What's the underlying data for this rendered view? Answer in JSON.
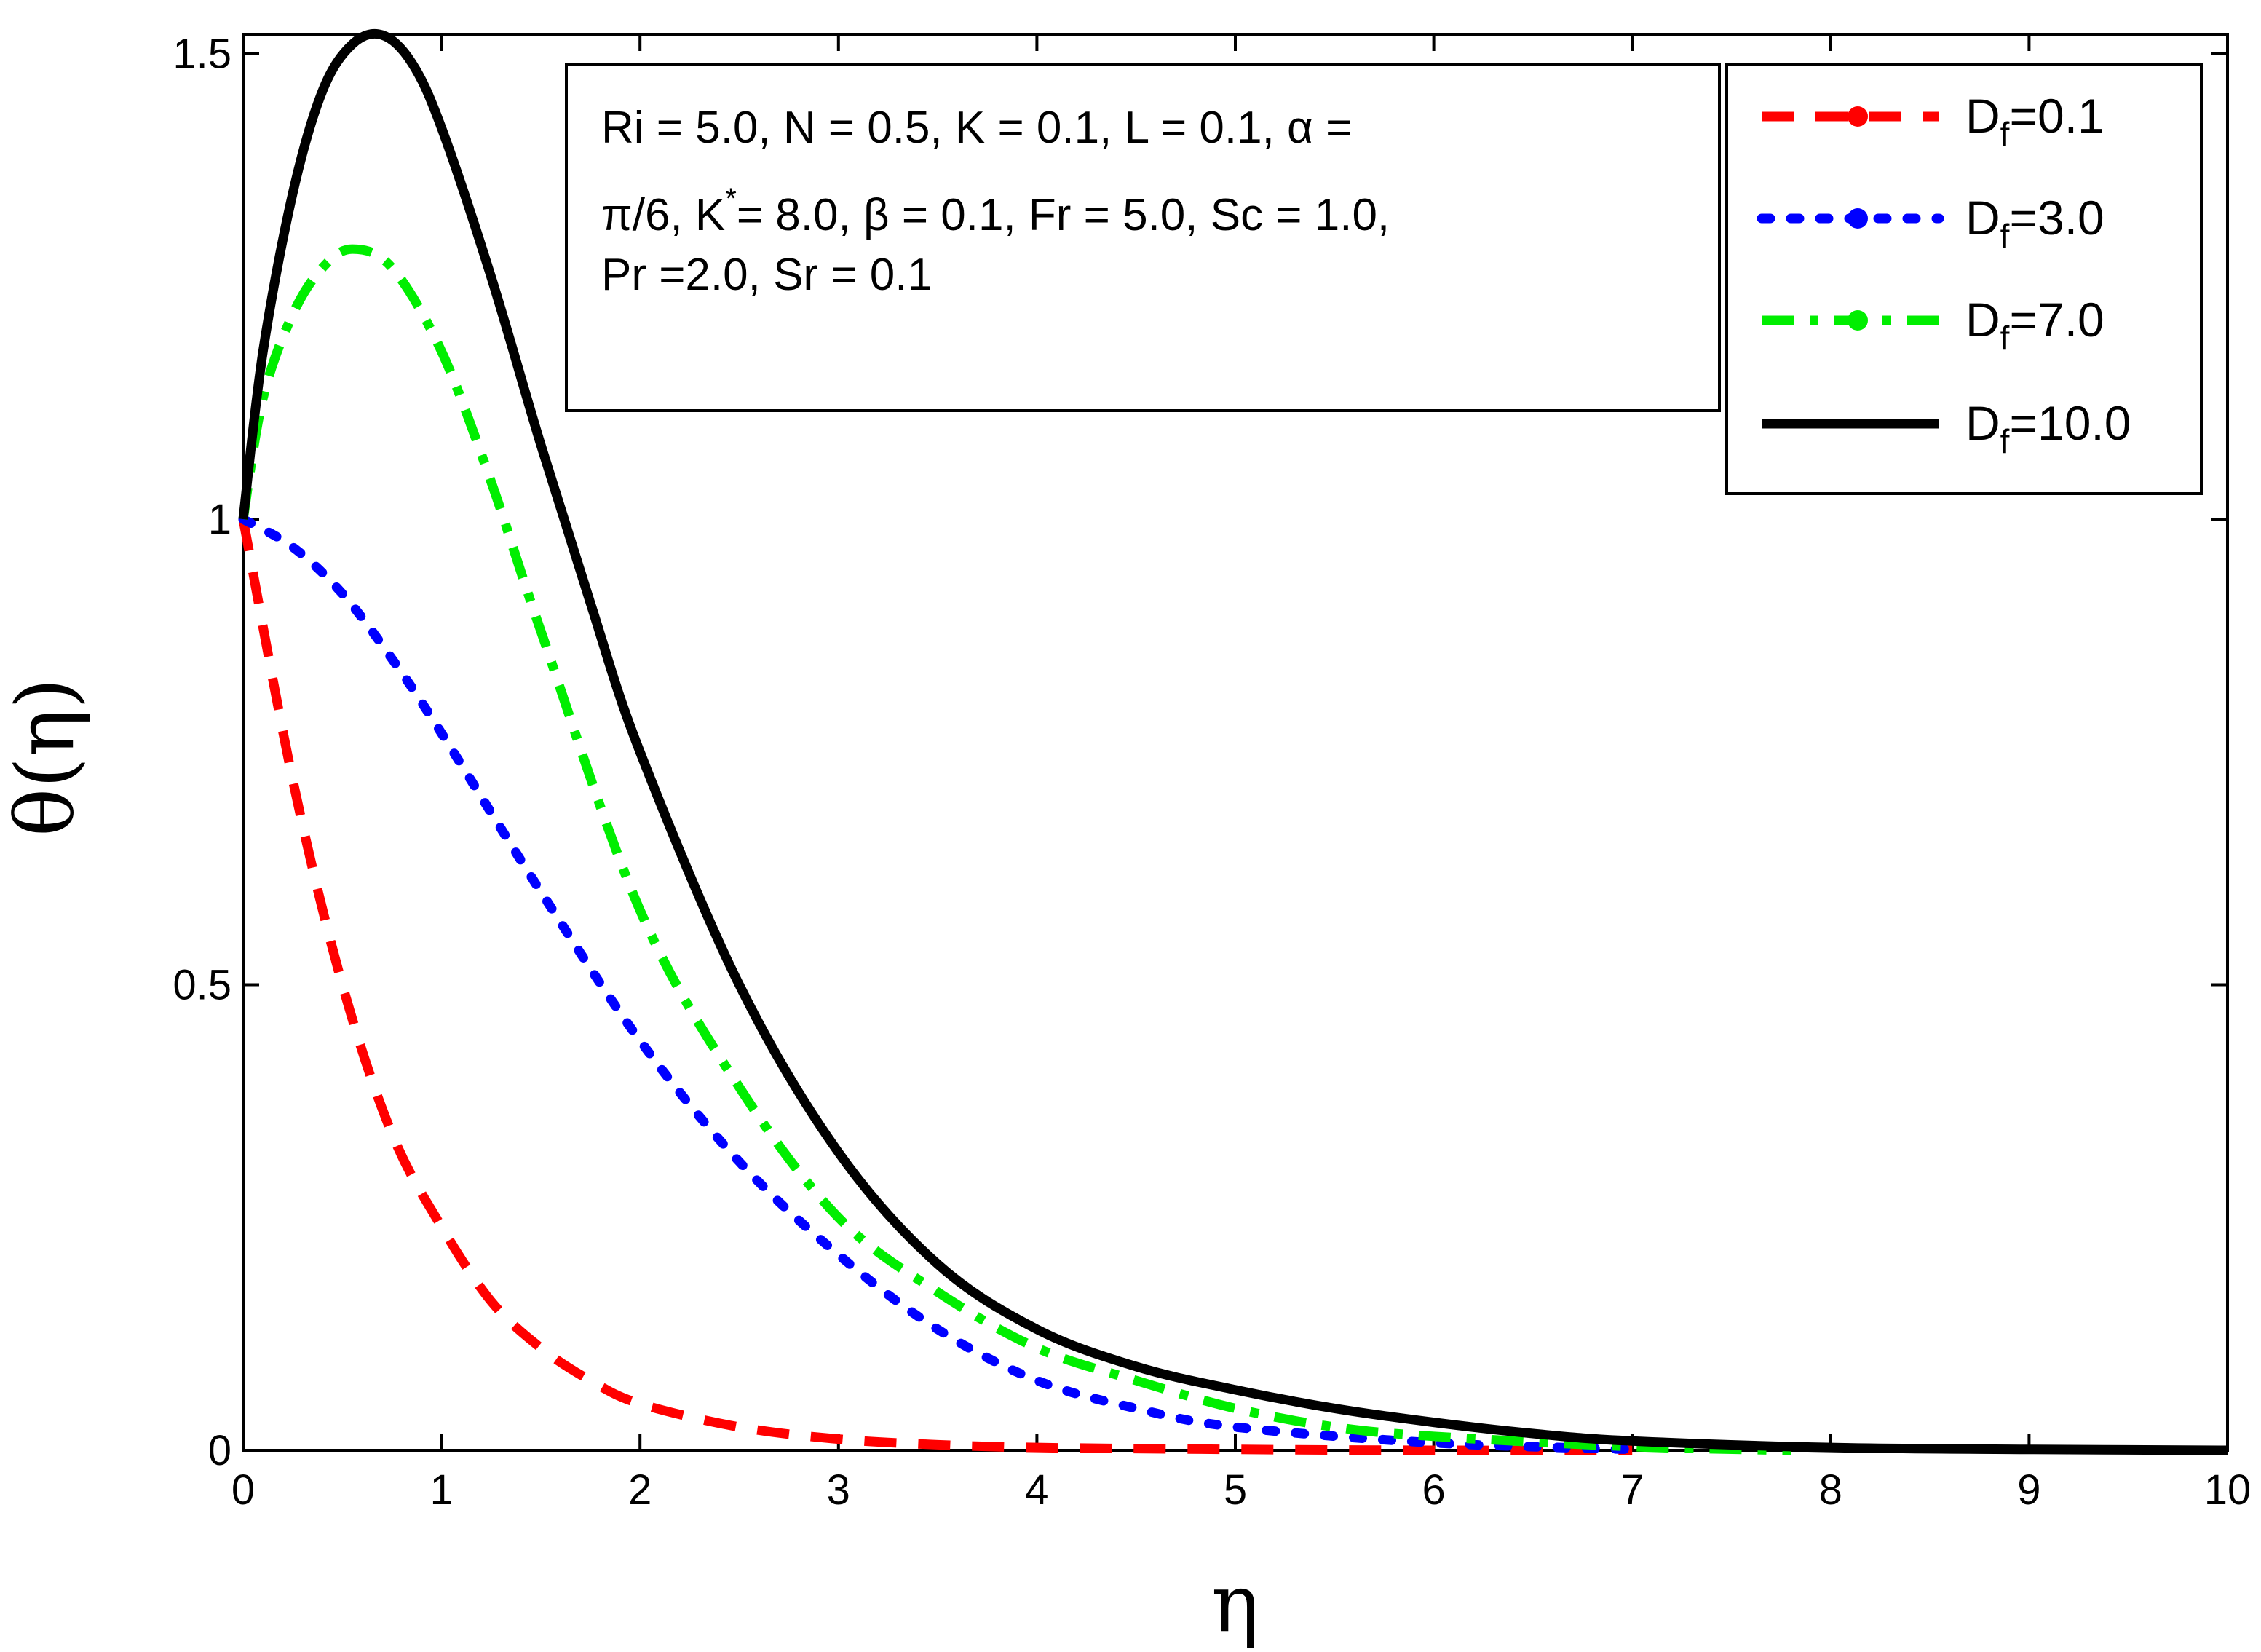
{
  "chart_data": {
    "type": "line",
    "xlabel": "η",
    "ylabel": "θ(η)",
    "xlim": [
      0,
      10
    ],
    "ylim": [
      0,
      1.52
    ],
    "xticks": [
      "0",
      "1",
      "2",
      "3",
      "4",
      "5",
      "6",
      "7",
      "8",
      "9",
      "10"
    ],
    "yticks": [
      "0",
      "0.5",
      "1",
      "1.5"
    ],
    "annotation_lines": [
      "Ri = 5.0, N = 0.5, K = 0.1, L = 0.1, α =",
      "π/6, K",
      "= 8.0, β = 0.1, Fr = 5.0, Sc = 1.0,",
      "Pr =2.0, Sr = 0.1"
    ],
    "annotation_superscript": "*",
    "legend_position": "top-right",
    "series": [
      {
        "name": "Df=0.1",
        "legend_main": "D",
        "legend_sub": "f",
        "legend_value": "=0.1",
        "color": "#ff0000",
        "style": "dashed",
        "x": [
          0,
          0.25,
          0.5,
          0.75,
          1.0,
          1.25,
          1.5,
          1.75,
          2.0,
          2.5,
          3.0,
          3.5,
          4.0,
          5.0,
          6.0,
          7.0
        ],
        "y": [
          1.0,
          0.72,
          0.5,
          0.34,
          0.24,
          0.16,
          0.11,
          0.075,
          0.05,
          0.025,
          0.012,
          0.006,
          0.003,
          0.001,
          0.0,
          0.0
        ]
      },
      {
        "name": "Df=3.0",
        "legend_main": "D",
        "legend_sub": "f",
        "legend_value": "=3.0",
        "color": "#0000ff",
        "style": "dotted",
        "x": [
          0,
          0.25,
          0.5,
          0.75,
          1.0,
          1.5,
          2.0,
          2.5,
          3.0,
          3.5,
          4.0,
          4.5,
          5.0,
          6.0,
          7.0
        ],
        "y": [
          1.0,
          0.97,
          0.92,
          0.85,
          0.77,
          0.6,
          0.44,
          0.31,
          0.21,
          0.13,
          0.075,
          0.045,
          0.025,
          0.008,
          0.001
        ]
      },
      {
        "name": "Df=7.0",
        "legend_main": "D",
        "legend_sub": "f",
        "legend_value": "=7.0",
        "color": "#00ee00",
        "style": "dash-dot",
        "x": [
          0,
          0.1,
          0.25,
          0.4,
          0.55,
          0.75,
          1.0,
          1.25,
          1.5,
          2.0,
          2.5,
          3.0,
          3.5,
          4.0,
          4.5,
          5.0,
          5.5,
          6.0,
          7.0,
          7.8
        ],
        "y": [
          1.0,
          1.13,
          1.22,
          1.27,
          1.29,
          1.27,
          1.18,
          1.04,
          0.88,
          0.58,
          0.39,
          0.25,
          0.17,
          0.11,
          0.075,
          0.045,
          0.025,
          0.015,
          0.004,
          0.0
        ]
      },
      {
        "name": "Df=10.0",
        "legend_main": "D",
        "legend_sub": "f",
        "legend_value": "=10.0",
        "color": "#000000",
        "style": "solid",
        "x": [
          0,
          0.1,
          0.25,
          0.4,
          0.55,
          0.7,
          0.85,
          1.0,
          1.25,
          1.5,
          1.75,
          2.0,
          2.5,
          3.0,
          3.5,
          4.0,
          4.5,
          5.0,
          5.5,
          6.0,
          6.5,
          7.0,
          8.0,
          9.0,
          10.0
        ],
        "y": [
          1.0,
          1.18,
          1.35,
          1.46,
          1.51,
          1.52,
          1.49,
          1.42,
          1.26,
          1.08,
          0.91,
          0.75,
          0.5,
          0.32,
          0.2,
          0.13,
          0.09,
          0.065,
          0.045,
          0.03,
          0.018,
          0.01,
          0.003,
          0.001,
          0.0
        ]
      }
    ]
  }
}
